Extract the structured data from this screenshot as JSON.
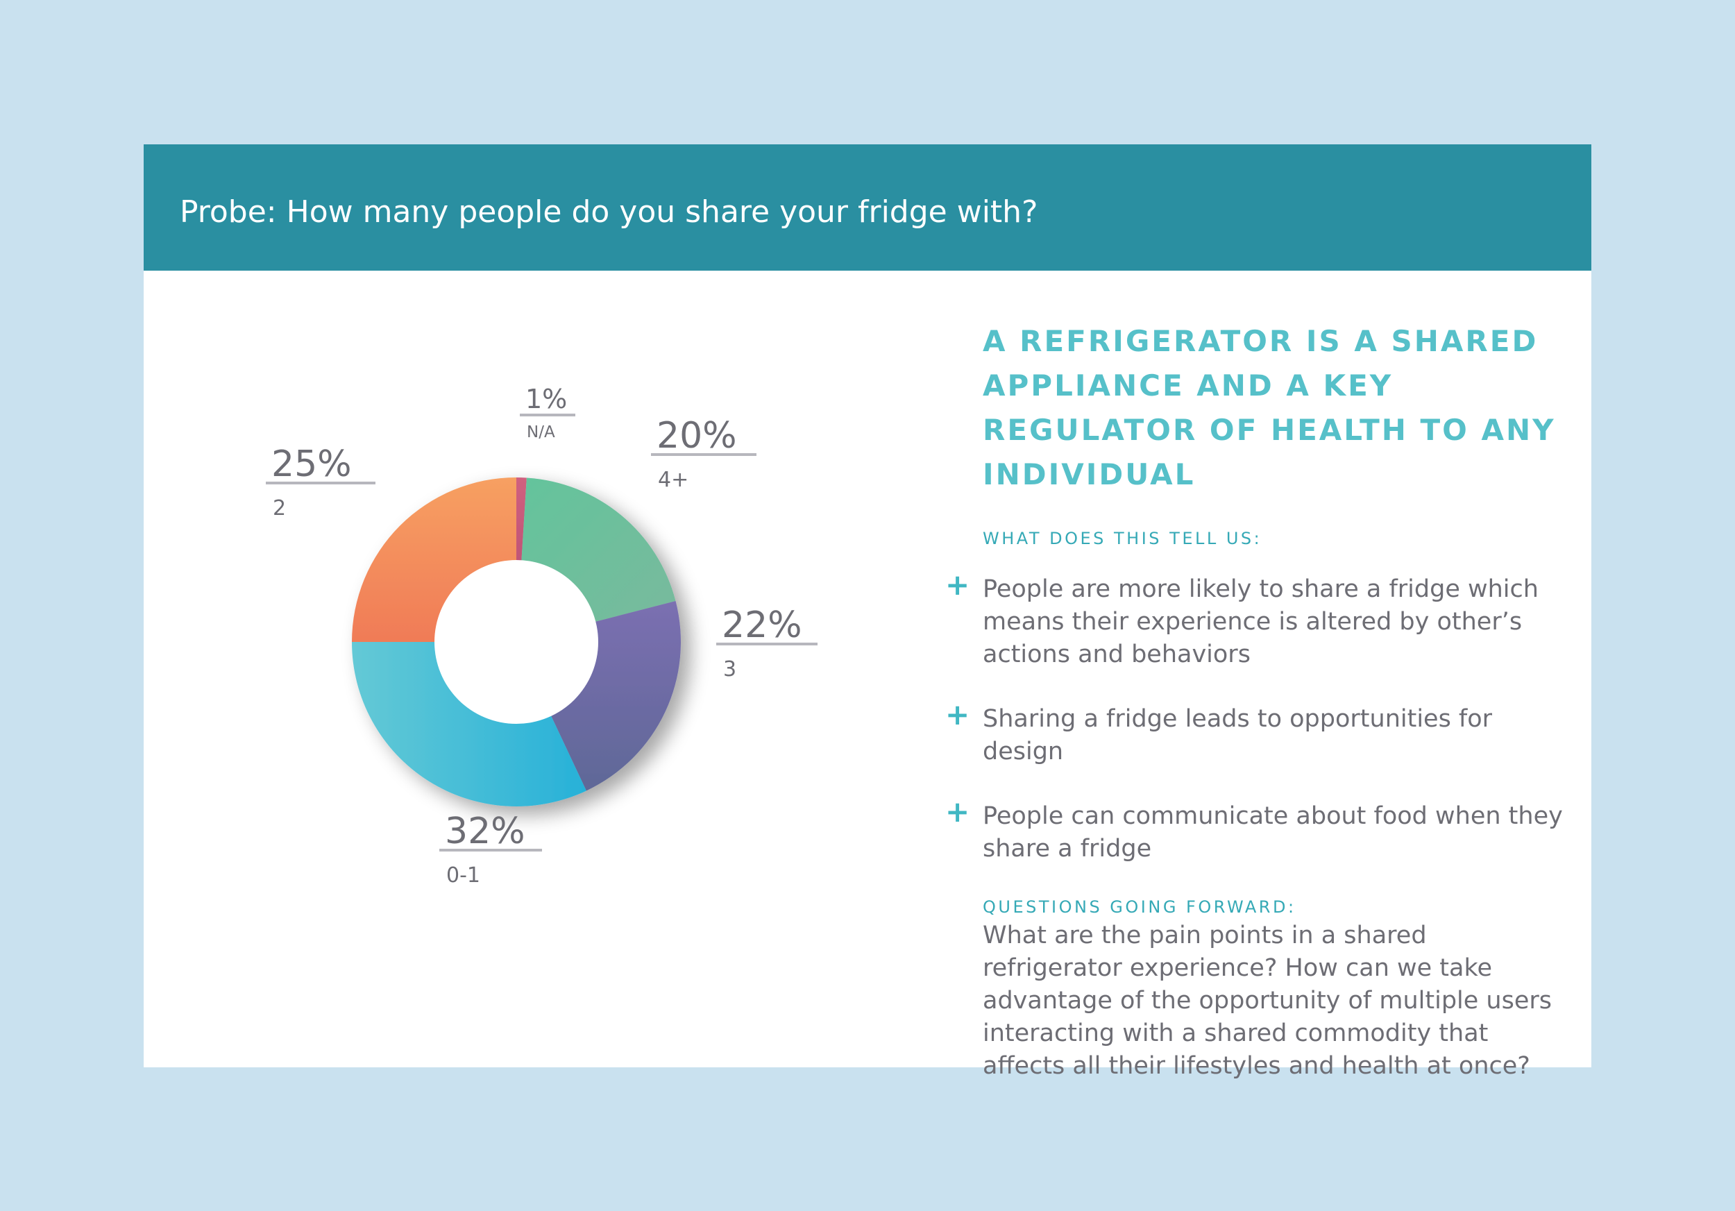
{
  "header": {
    "title": "Probe: How many people do you share your fridge with?"
  },
  "chart_data": {
    "type": "pie",
    "variant": "donut",
    "categories": [
      "N/A",
      "4+",
      "3",
      "0-1",
      "2"
    ],
    "values": [
      1,
      20,
      22,
      32,
      25
    ],
    "percent_labels": [
      "1%",
      "20%",
      "22%",
      "32%",
      "25%"
    ],
    "colors": [
      "#c6577a",
      "#6cc19b",
      "#6d6aa3",
      "#3cb8d3",
      "#f48c60"
    ],
    "title": "Probe: How many people do you share your fridge with?"
  },
  "colors": {
    "background": "#c9e1ef",
    "header": "#2a8fa1",
    "accent": "#56c0c9",
    "body_text": "#6d6d74"
  },
  "insights": {
    "headline": "A REFRIGERATOR IS A SHARED APPLIANCE AND A KEY REGULATOR OF HEALTH TO ANY INDIVIDUAL",
    "tell_us_label": "WHAT DOES THIS TELL US:",
    "bullet_icon": "plus-icon",
    "bullets": [
      "People are more likely to share a fridge which means their experience is altered by other’s actions and behaviors",
      "Sharing a fridge leads to opportunities for design",
      "People can communicate about food when they share a fridge"
    ],
    "questions_label": "QUESTIONS GOING FORWARD:",
    "questions_text": "What are the pain points in a shared refrigerator experience? How can we take advantage of the opportunity of multiple users interacting with a shared commodity that affects all their lifestyles and health at once?"
  }
}
